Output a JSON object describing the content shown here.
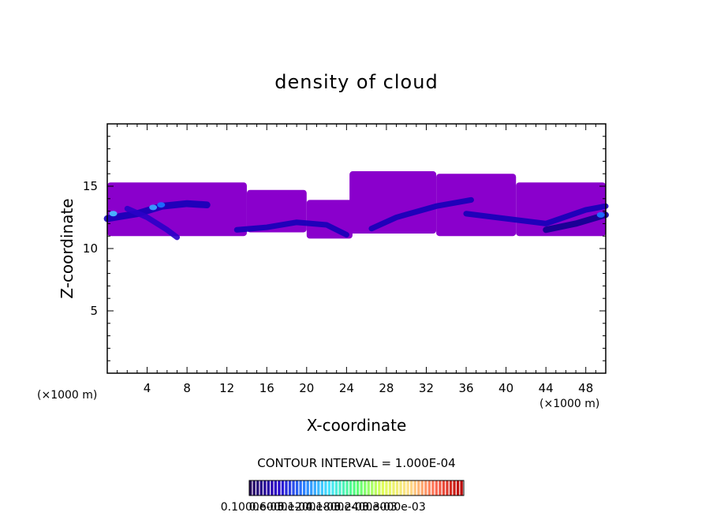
{
  "chart_data": {
    "type": "heatmap",
    "title": "density of cloud",
    "xlabel": "X-coordinate",
    "ylabel": "Z-coordinate",
    "x_unit_left": "(×1000 m)",
    "x_unit_right": "(×1000 m)",
    "xlim": [
      0,
      50
    ],
    "ylim": [
      0,
      20
    ],
    "x_ticks": [
      4,
      8,
      12,
      16,
      20,
      24,
      28,
      32,
      36,
      40,
      44,
      48
    ],
    "y_ticks": [
      5,
      10,
      15
    ],
    "grid": false,
    "contour_interval_text": "CONTOUR INTERVAL = 1.000E-04",
    "colorbar_labels": [
      "0.1000e-05",
      "0.6000e-04",
      "0.1200e-03",
      "0.1800e-03",
      "0.2400e-03",
      "0.3000e-03"
    ],
    "colorbar_colors": [
      "#24005a",
      "#2a00c8",
      "#2a7dff",
      "#49e6ff",
      "#56ff7a",
      "#dfff57",
      "#ffe08a",
      "#ff6f56",
      "#b80000"
    ],
    "cloud_regions": [
      {
        "x": [
          0,
          14
        ],
        "z": [
          11,
          15.3
        ],
        "fill": "#8a00cc"
      },
      {
        "x": [
          14,
          20
        ],
        "z": [
          11.3,
          14.7
        ],
        "fill": "#8a00cc"
      },
      {
        "x": [
          20,
          24.6
        ],
        "z": [
          10.8,
          13.9
        ],
        "fill": "#8a00cc"
      },
      {
        "x": [
          24.3,
          33
        ],
        "z": [
          11.2,
          16.2
        ],
        "fill": "#8a00cc"
      },
      {
        "x": [
          33,
          41
        ],
        "z": [
          11,
          16
        ],
        "fill": "#8a00cc"
      },
      {
        "x": [
          41,
          50
        ],
        "z": [
          11,
          15.3
        ],
        "fill": "#8a00cc"
      }
    ],
    "dense_bands": [
      {
        "points": [
          [
            0,
            12.4
          ],
          [
            3,
            12.8
          ],
          [
            5.5,
            13.4
          ],
          [
            8,
            13.6
          ],
          [
            10,
            13.5
          ]
        ],
        "fill": "#1400b8",
        "width": 0.55
      },
      {
        "points": [
          [
            2,
            13.2
          ],
          [
            4,
            12.5
          ],
          [
            6,
            11.5
          ],
          [
            7,
            10.9
          ]
        ],
        "fill": "#2a00c8",
        "width": 0.45
      },
      {
        "points": [
          [
            13,
            11.5
          ],
          [
            16,
            11.7
          ],
          [
            19,
            12.1
          ],
          [
            22,
            11.9
          ],
          [
            24,
            11.1
          ]
        ],
        "fill": "#1400b8",
        "width": 0.45
      },
      {
        "points": [
          [
            26.5,
            11.6
          ],
          [
            29,
            12.5
          ],
          [
            33,
            13.4
          ],
          [
            36.5,
            13.9
          ]
        ],
        "fill": "#1400b8",
        "width": 0.45
      },
      {
        "points": [
          [
            36,
            12.8
          ],
          [
            40,
            12.4
          ],
          [
            44,
            12.0
          ],
          [
            48,
            13.1
          ],
          [
            50,
            13.4
          ]
        ],
        "fill": "#1400b8",
        "width": 0.45
      },
      {
        "points": [
          [
            44,
            11.5
          ],
          [
            47,
            12.0
          ],
          [
            50,
            12.7
          ]
        ],
        "fill": "#0d0090",
        "width": 0.5
      }
    ],
    "hot_spots": [
      {
        "x": 0.6,
        "z": 12.8,
        "fill": "#49b8ff"
      },
      {
        "x": 4.6,
        "z": 13.3,
        "fill": "#3aa0ff"
      },
      {
        "x": 5.4,
        "z": 13.5,
        "fill": "#1f6fff"
      },
      {
        "x": 49.5,
        "z": 12.7,
        "fill": "#1f6fff"
      }
    ]
  }
}
